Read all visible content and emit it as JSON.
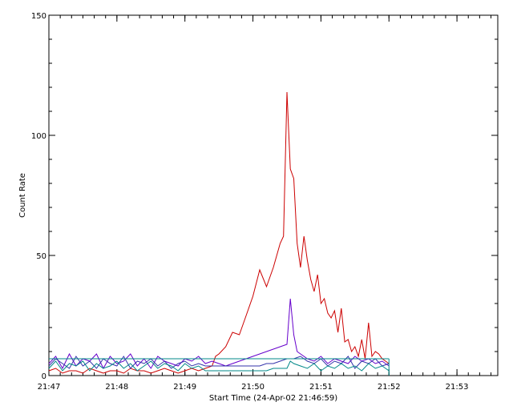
{
  "chart_data": {
    "type": "line",
    "title": "",
    "xlabel": "Start Time (24-Apr-02 21:46:59)",
    "ylabel": "Count Rate",
    "x_unit": "minutes after 21:47",
    "xlim": [
      0,
      6.6
    ],
    "ylim": [
      0,
      150
    ],
    "grid": false,
    "legend": "none",
    "x_ticks": [
      {
        "value": 0,
        "label": "21:47"
      },
      {
        "value": 1,
        "label": "21:48"
      },
      {
        "value": 2,
        "label": "21:49"
      },
      {
        "value": 3,
        "label": "21:50"
      },
      {
        "value": 4,
        "label": "21:51"
      },
      {
        "value": 5,
        "label": "21:52"
      },
      {
        "value": 6,
        "label": "21:53"
      }
    ],
    "y_ticks": [
      {
        "value": 0,
        "label": "0"
      },
      {
        "value": 50,
        "label": "50"
      },
      {
        "value": 100,
        "label": "100"
      },
      {
        "value": 150,
        "label": "150"
      }
    ],
    "series": [
      {
        "color": "#cc0000",
        "x": [
          0,
          0.1,
          0.2,
          0.3,
          0.4,
          0.5,
          0.6,
          0.7,
          0.8,
          0.9,
          1.0,
          1.1,
          1.2,
          1.3,
          1.4,
          1.5,
          1.6,
          1.7,
          1.8,
          1.9,
          2.0,
          2.1,
          2.2,
          2.3,
          2.4,
          2.45,
          2.5,
          2.6,
          2.7,
          2.8,
          2.9,
          3.0,
          3.1,
          3.2,
          3.3,
          3.4,
          3.45,
          3.5,
          3.55,
          3.6,
          3.65,
          3.7,
          3.75,
          3.8,
          3.85,
          3.9,
          3.95,
          4.0,
          4.05,
          4.1,
          4.15,
          4.2,
          4.25,
          4.3,
          4.35,
          4.4,
          4.45,
          4.5,
          4.55,
          4.6,
          4.65,
          4.7,
          4.75,
          4.8,
          4.85,
          4.9,
          4.95,
          5.0
        ],
        "values": [
          2,
          3,
          1,
          2,
          2,
          1,
          3,
          2,
          1,
          2,
          2,
          1,
          3,
          2,
          2,
          1,
          2,
          3,
          2,
          1,
          2,
          3,
          2,
          3,
          4,
          8,
          9,
          12,
          18,
          17,
          25,
          33,
          44,
          37,
          45,
          55,
          58,
          118,
          86,
          82,
          55,
          45,
          58,
          48,
          40,
          35,
          42,
          30,
          32,
          26,
          24,
          27,
          18,
          28,
          14,
          15,
          10,
          12,
          8,
          15,
          7,
          22,
          8,
          10,
          9,
          7,
          6,
          5
        ]
      },
      {
        "color": "#6600cc",
        "x": [
          0,
          0.1,
          0.2,
          0.3,
          0.4,
          0.5,
          0.6,
          0.7,
          0.8,
          0.9,
          1.0,
          1.1,
          1.2,
          1.3,
          1.4,
          1.5,
          1.6,
          1.7,
          1.8,
          1.9,
          2.0,
          2.1,
          2.2,
          2.3,
          2.4,
          2.5,
          2.6,
          2.7,
          2.8,
          2.9,
          3.0,
          3.1,
          3.2,
          3.3,
          3.4,
          3.5,
          3.55,
          3.6,
          3.65,
          3.7,
          3.8,
          3.9,
          4.0,
          4.1,
          4.2,
          4.3,
          4.4,
          4.5,
          4.6,
          4.7,
          4.8,
          4.9,
          5.0
        ],
        "values": [
          5,
          8,
          3,
          9,
          4,
          7,
          6,
          9,
          3,
          8,
          5,
          6,
          9,
          4,
          7,
          3,
          8,
          6,
          5,
          4,
          7,
          6,
          8,
          5,
          6,
          5,
          4,
          5,
          6,
          7,
          8,
          9,
          10,
          11,
          12,
          13,
          32,
          17,
          10,
          9,
          7,
          6,
          8,
          5,
          7,
          6,
          5,
          8,
          6,
          7,
          5,
          6,
          4
        ]
      },
      {
        "color": "#3333aa",
        "x": [
          0,
          0.1,
          0.2,
          0.3,
          0.4,
          0.5,
          0.6,
          0.7,
          0.8,
          0.9,
          1.0,
          1.1,
          1.2,
          1.3,
          1.4,
          1.5,
          1.6,
          1.7,
          1.8,
          1.9,
          2.0,
          2.1,
          2.2,
          2.3,
          2.4,
          2.5,
          2.6,
          2.7,
          2.8,
          2.9,
          3.0,
          3.1,
          3.2,
          3.3,
          3.4,
          3.5,
          3.6,
          3.7,
          3.8,
          3.9,
          4.0,
          4.1,
          4.2,
          4.3,
          4.4,
          4.5,
          4.6,
          4.7,
          4.8,
          4.9,
          5.0
        ],
        "values": [
          4,
          7,
          5,
          3,
          8,
          4,
          6,
          3,
          7,
          5,
          4,
          8,
          3,
          6,
          5,
          7,
          4,
          6,
          3,
          5,
          6,
          4,
          5,
          4,
          4,
          4,
          4,
          4,
          4,
          4,
          4,
          4,
          5,
          5,
          6,
          7,
          7,
          8,
          6,
          5,
          7,
          4,
          6,
          5,
          8,
          3,
          6,
          5,
          7,
          4,
          5
        ]
      },
      {
        "color": "#008888",
        "x": [
          0,
          0.1,
          0.2,
          0.3,
          0.4,
          0.5,
          0.6,
          0.7,
          0.8,
          0.9,
          1.0,
          1.1,
          1.2,
          1.3,
          1.4,
          1.5,
          1.6,
          1.7,
          1.8,
          1.9,
          2.0,
          2.1,
          2.2,
          2.3,
          2.4,
          2.5,
          2.6,
          2.7,
          2.8,
          2.9,
          3.0,
          3.1,
          3.2,
          3.3,
          3.4,
          3.5,
          3.55,
          3.6,
          3.7,
          3.8,
          3.9,
          4.0,
          4.1,
          4.2,
          4.3,
          4.4,
          4.5,
          4.6,
          4.7,
          4.8,
          4.9,
          5.0
        ],
        "values": [
          3,
          6,
          2,
          5,
          4,
          6,
          2,
          5,
          3,
          4,
          6,
          3,
          5,
          2,
          4,
          6,
          3,
          5,
          4,
          2,
          5,
          3,
          4,
          2,
          2,
          2,
          2,
          2,
          2,
          2,
          2,
          2,
          2,
          3,
          3,
          3,
          6,
          5,
          4,
          3,
          5,
          2,
          4,
          3,
          5,
          3,
          4,
          2,
          5,
          3,
          4,
          2
        ]
      }
    ],
    "flat_envelope": {
      "color": "#008888",
      "x": [
        0,
        5.0
      ],
      "value": 7
    }
  }
}
